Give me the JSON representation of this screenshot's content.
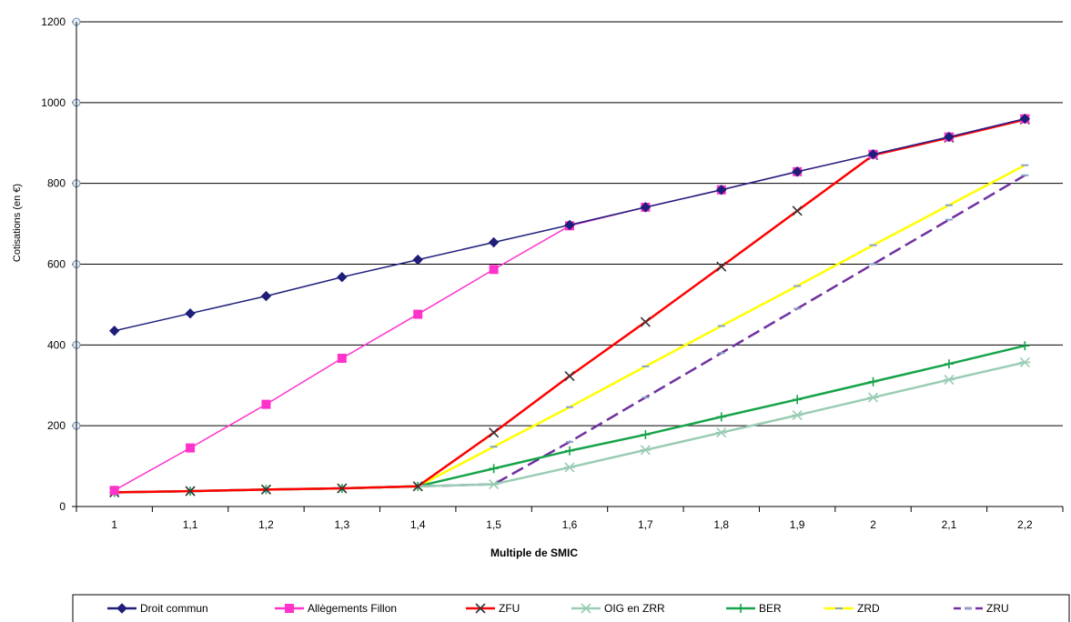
{
  "chart_data": {
    "type": "line",
    "title": "",
    "xlabel": "Multiple de SMIC",
    "ylabel": "Cotisations (en €)",
    "x": [
      "1",
      "1,1",
      "1,2",
      "1,3",
      "1,4",
      "1,5",
      "1,6",
      "1,7",
      "1,8",
      "1,9",
      "2",
      "2,1",
      "2,2"
    ],
    "ylim": [
      0,
      1200
    ],
    "yticks": [
      0,
      200,
      400,
      600,
      800,
      1000,
      1200
    ],
    "grid": true,
    "legend_position": "bottom",
    "series": [
      {
        "name": "Droit commun",
        "color": "#1f1f7a",
        "marker": "diamond",
        "values": [
          435,
          478,
          521,
          568,
          611,
          654,
          697,
          741,
          784,
          829,
          872,
          915,
          960
        ]
      },
      {
        "name": "Allègements Fillon",
        "color": "#ff33cc",
        "marker": "square",
        "values": [
          40,
          145,
          253,
          367,
          476,
          587,
          695,
          741,
          784,
          829,
          872,
          915,
          960
        ]
      },
      {
        "name": "ZFU",
        "color": "#ff0000",
        "marker": "x",
        "values": [
          35,
          38,
          42,
          45,
          50,
          183,
          323,
          457,
          594,
          732,
          870,
          913,
          958
        ]
      },
      {
        "name": "OIG en ZRR",
        "color": "#99ccb3",
        "marker": "star",
        "values": [
          35,
          38,
          42,
          45,
          50,
          55,
          97,
          140,
          183,
          226,
          270,
          314,
          357
        ]
      },
      {
        "name": "BER",
        "color": "#16a34a",
        "marker": "plus",
        "values": [
          35,
          38,
          42,
          45,
          50,
          94,
          138,
          178,
          222,
          265,
          309,
          353,
          398
        ]
      },
      {
        "name": "ZRD",
        "color": "#ffff00",
        "marker": "dash",
        "values": [
          35,
          38,
          42,
          45,
          50,
          148,
          246,
          347,
          447,
          546,
          647,
          746,
          845
        ]
      },
      {
        "name": "ZRU",
        "color": "#7030a0",
        "marker": "dash",
        "dashed": true,
        "values": [
          35,
          38,
          42,
          45,
          50,
          55,
          160,
          270,
          380,
          490,
          600,
          710,
          820
        ]
      }
    ]
  }
}
